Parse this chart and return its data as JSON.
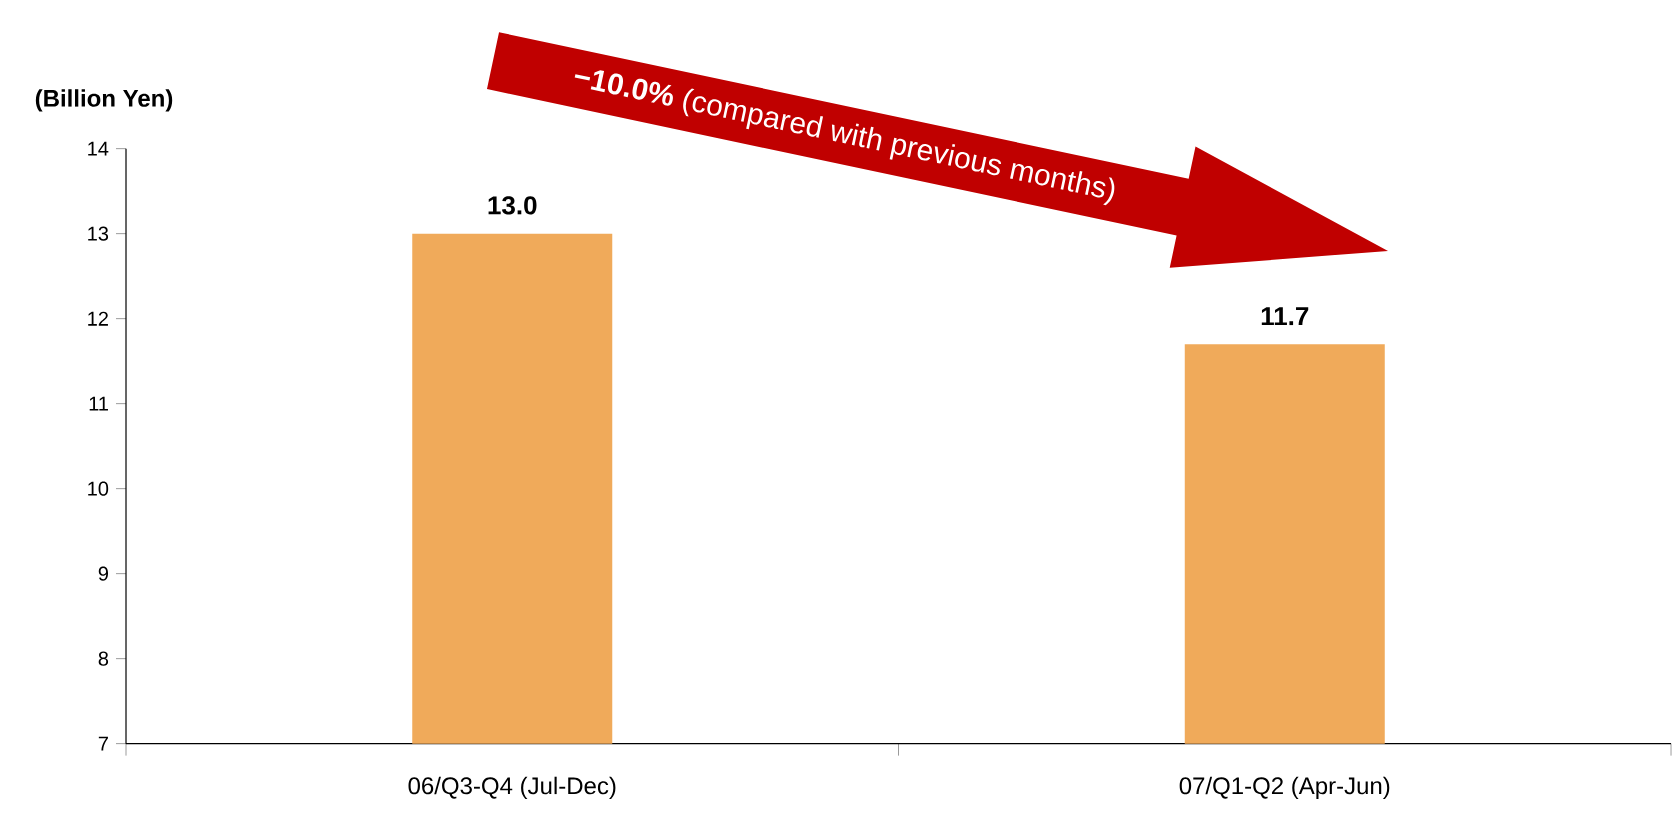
{
  "chart_data": {
    "type": "bar",
    "ylabel": "(Billion Yen)",
    "categories": [
      "06/Q3-Q4 (Jul-Dec)",
      "07/Q1-Q2 (Apr-Jun)"
    ],
    "values": [
      13.0,
      11.7
    ],
    "value_labels": [
      "13.0",
      "11.7"
    ],
    "color": "#f0aa5a",
    "ylim": [
      7,
      14
    ],
    "yticks": [
      7,
      8,
      9,
      10,
      11,
      12,
      13,
      14
    ],
    "grid": false,
    "annotations": [
      "**−10.0%** (compared with previous months)"
    ]
  }
}
